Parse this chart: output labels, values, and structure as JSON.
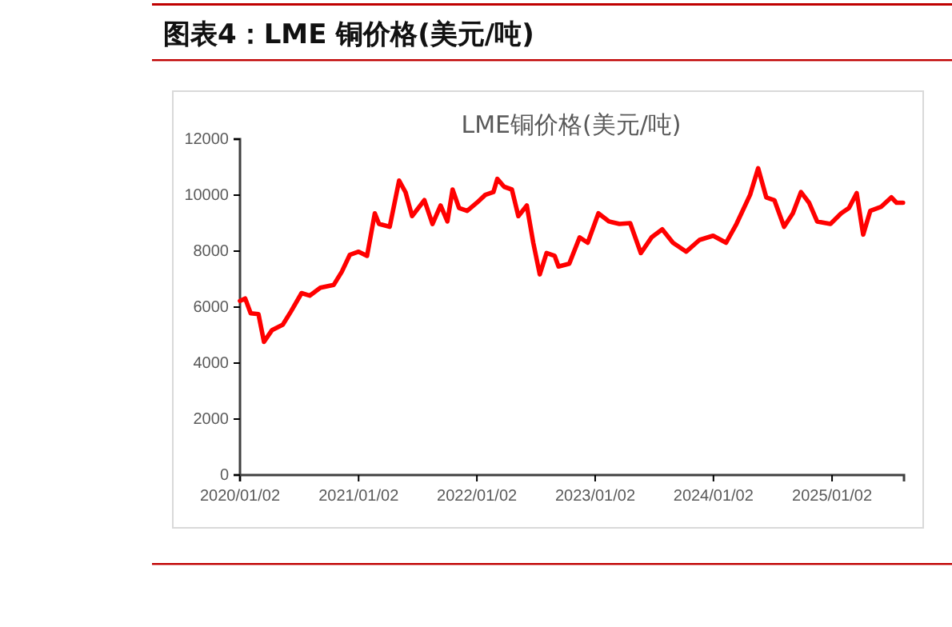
{
  "chart_data": {
    "type": "line",
    "title": "LME铜价格(美元/吨)",
    "annotations": [
      "图表4：LME 铜价格(美元/吨)"
    ],
    "x": [
      "2020-01-02",
      "2020-01-18",
      "2020-02-04",
      "2020-02-28",
      "2020-03-16",
      "2020-04-10",
      "2020-05-13",
      "2020-06-07",
      "2020-07-10",
      "2020-08-04",
      "2020-09-06",
      "2020-10-17",
      "2020-11-11",
      "2020-12-06",
      "2021-01-02",
      "2021-01-28",
      "2021-02-21",
      "2021-03-06",
      "2021-04-08",
      "2021-05-07",
      "2021-05-27",
      "2021-06-16",
      "2021-07-24",
      "2021-08-18",
      "2021-09-12",
      "2021-10-03",
      "2021-10-19",
      "2021-11-08",
      "2021-12-03",
      "2022-01-02",
      "2022-01-28",
      "2022-02-22",
      "2022-03-06",
      "2022-03-27",
      "2022-04-20",
      "2022-05-10",
      "2022-06-05",
      "2022-06-25",
      "2022-07-15",
      "2022-08-05",
      "2022-08-30",
      "2022-09-11",
      "2022-10-14",
      "2022-11-15",
      "2022-12-10",
      "2023-01-12",
      "2023-02-14",
      "2023-03-18",
      "2023-04-20",
      "2023-05-23",
      "2023-06-25",
      "2023-07-28",
      "2023-08-30",
      "2023-10-10",
      "2023-11-20",
      "2024-01-01",
      "2024-02-10",
      "2024-03-13",
      "2024-04-24",
      "2024-05-19",
      "2024-06-13",
      "2024-07-08",
      "2024-08-07",
      "2024-09-03",
      "2024-09-28",
      "2024-10-23",
      "2024-11-17",
      "2024-12-28",
      "2025-01-30",
      "2025-02-23",
      "2025-03-19",
      "2025-04-08",
      "2025-04-30",
      "2025-06-02",
      "2025-07-04",
      "2025-07-20",
      "2025-08-09"
    ],
    "series": [
      {
        "color": "#ff0000",
        "values": [
          6220,
          6310,
          5780,
          5750,
          4760,
          5180,
          5370,
          5840,
          6500,
          6410,
          6690,
          6790,
          7260,
          7870,
          7980,
          7830,
          9350,
          8970,
          8870,
          10520,
          10100,
          9250,
          9820,
          8970,
          9630,
          9060,
          10200,
          9540,
          9440,
          9730,
          10010,
          10110,
          10580,
          10300,
          10200,
          9250,
          9630,
          8300,
          7170,
          7930,
          7830,
          7450,
          7550,
          8490,
          8300,
          9350,
          9060,
          8970,
          9000,
          7930,
          8490,
          8780,
          8300,
          7980,
          8400,
          8550,
          8300,
          8970,
          10010,
          10960,
          9920,
          9820,
          8870,
          9350,
          10110,
          9730,
          9060,
          8970,
          9350,
          9540,
          10070,
          8590,
          9440,
          9580,
          9920,
          9730,
          9730
        ]
      }
    ],
    "xlim": [
      "2020-01-02",
      "2025-08-12"
    ],
    "xticks": [
      {
        "value": "2020-01-02",
        "label": "2020/01/02"
      },
      {
        "value": "2021-01-02",
        "label": "2021/01/02"
      },
      {
        "value": "2022-01-02",
        "label": "2022/01/02"
      },
      {
        "value": "2023-01-02",
        "label": "2023/01/02"
      },
      {
        "value": "2024-01-02",
        "label": "2024/01/02"
      },
      {
        "value": "2025-01-02",
        "label": "2025/01/02"
      }
    ],
    "ylim": [
      0,
      12000
    ],
    "yticks": [
      0,
      2000,
      4000,
      6000,
      8000,
      10000,
      12000
    ],
    "grid": false,
    "marker": "none",
    "line_style": "solid"
  }
}
